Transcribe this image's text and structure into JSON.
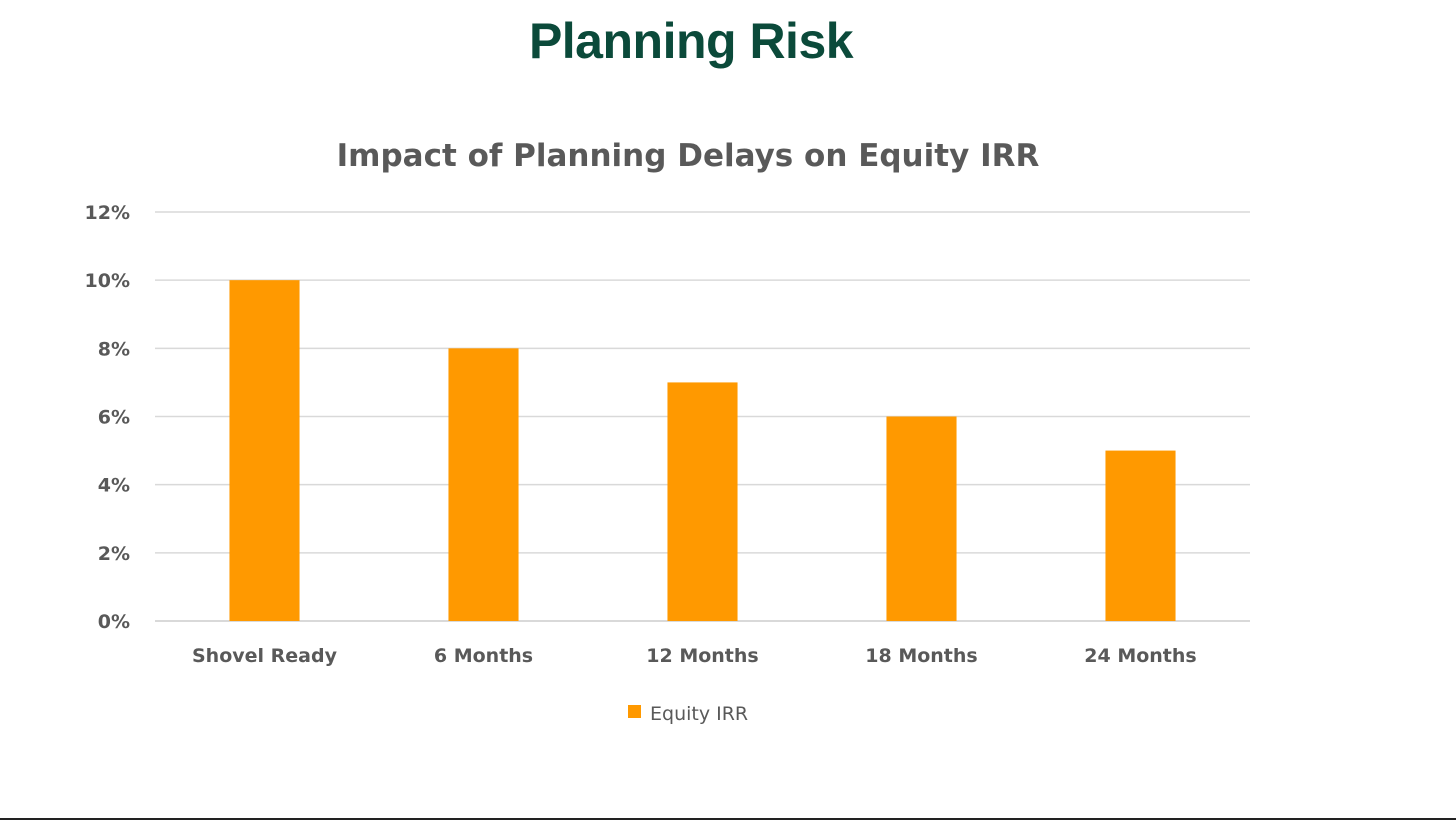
{
  "page": {
    "title": "Planning Risk"
  },
  "colors": {
    "title": "#0b4a3a",
    "bar": "#ff9900",
    "grid": "#d9d9d9",
    "text": "#595959"
  },
  "chart_data": {
    "type": "bar",
    "title": "Impact of Planning Delays on Equity IRR",
    "categories": [
      "Shovel Ready",
      "6 Months",
      "12 Months",
      "18 Months",
      "24 Months"
    ],
    "series": [
      {
        "name": "Equity IRR",
        "values": [
          10,
          8,
          7,
          6,
          5
        ]
      }
    ],
    "ylim": [
      0,
      12
    ],
    "yticks": [
      0,
      2,
      4,
      6,
      8,
      10,
      12
    ],
    "ytick_labels": [
      "0%",
      "2%",
      "4%",
      "6%",
      "8%",
      "10%",
      "12%"
    ],
    "xlabel": "",
    "ylabel": "",
    "grid": true,
    "legend": "bottom-center"
  }
}
